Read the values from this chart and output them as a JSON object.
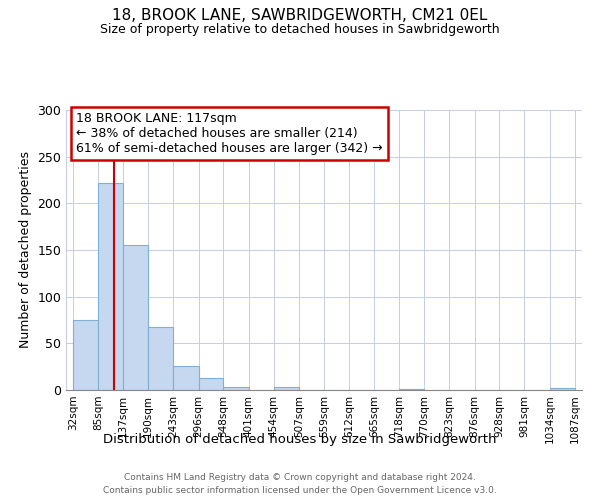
{
  "title": "18, BROOK LANE, SAWBRIDGEWORTH, CM21 0EL",
  "subtitle": "Size of property relative to detached houses in Sawbridgeworth",
  "xlabel": "Distribution of detached houses by size in Sawbridgeworth",
  "ylabel": "Number of detached properties",
  "bar_edges": [
    32,
    85,
    137,
    190,
    243,
    296,
    348,
    401,
    454,
    507,
    559,
    612,
    665,
    718,
    770,
    823,
    876,
    928,
    981,
    1034,
    1087
  ],
  "bar_heights": [
    75,
    222,
    155,
    67,
    26,
    13,
    3,
    0,
    3,
    0,
    0,
    0,
    0,
    1,
    0,
    0,
    0,
    0,
    0,
    2
  ],
  "bar_color": "#c5d8ef",
  "bar_edge_color": "#7fafd4",
  "ref_line_x": 117,
  "ref_line_color": "#cc0000",
  "ylim": [
    0,
    300
  ],
  "yticks": [
    0,
    50,
    100,
    150,
    200,
    250,
    300
  ],
  "annotation_title": "18 BROOK LANE: 117sqm",
  "annotation_line1": "← 38% of detached houses are smaller (214)",
  "annotation_line2": "61% of semi-detached houses are larger (342) →",
  "annotation_box_color": "#ffffff",
  "annotation_box_edge": "#cc0000",
  "footer_line1": "Contains HM Land Registry data © Crown copyright and database right 2024.",
  "footer_line2": "Contains public sector information licensed under the Open Government Licence v3.0.",
  "background_color": "#ffffff",
  "grid_color": "#c8cde8"
}
